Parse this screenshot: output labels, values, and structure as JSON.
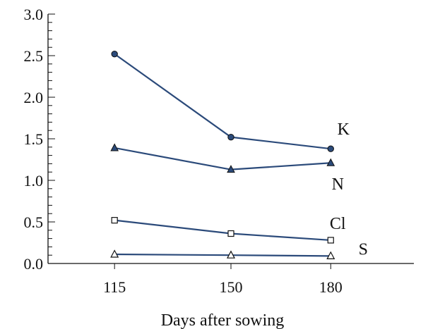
{
  "chart_data": {
    "type": "line",
    "title": "",
    "xlabel": "Days after sowing",
    "ylabel": "",
    "x": [
      115,
      150,
      180
    ],
    "x_tick_labels": [
      "115",
      "150",
      "180"
    ],
    "xlim": [
      95,
      205
    ],
    "ylim": [
      0,
      3.0
    ],
    "y_ticks": [
      0.0,
      0.5,
      1.0,
      1.5,
      2.0,
      2.5,
      3.0
    ],
    "y_tick_labels": [
      "0.0",
      "0.5",
      "1.0",
      "1.5",
      "2.0",
      "2.5",
      "3.0"
    ],
    "y_minor_step": 0.1,
    "grid": false,
    "line_color": "#2b4a7a",
    "series": [
      {
        "name": "K",
        "values": [
          2.52,
          1.52,
          1.38
        ],
        "marker": "circle"
      },
      {
        "name": "N",
        "values": [
          1.39,
          1.13,
          1.21
        ],
        "marker": "triangle"
      },
      {
        "name": "Cl",
        "values": [
          0.52,
          0.36,
          0.28
        ],
        "marker": "square"
      },
      {
        "name": "S",
        "values": [
          0.11,
          0.1,
          0.09
        ],
        "marker": "triangle-open"
      }
    ]
  }
}
